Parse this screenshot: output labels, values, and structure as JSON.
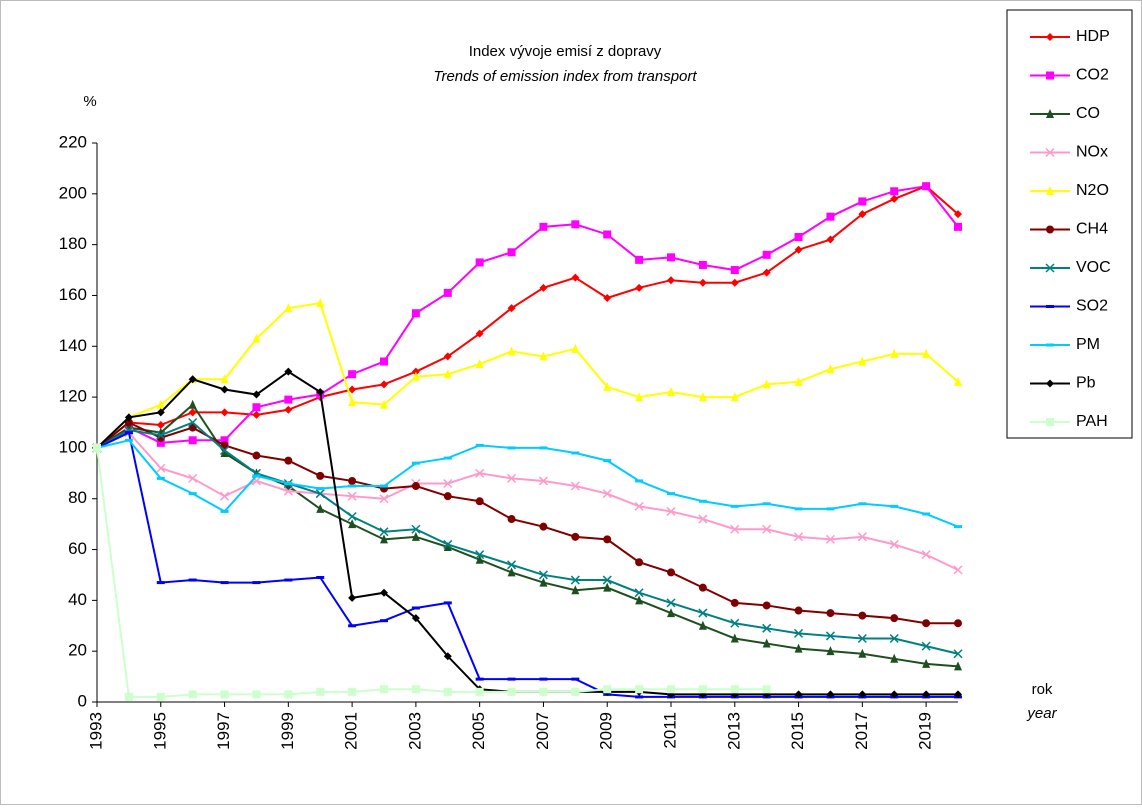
{
  "chart_data": {
    "type": "line",
    "title": "Index vývoje emisí z dopravy",
    "subtitle": "Trends of emission index from transport",
    "y_label": "%",
    "x_label": "rok",
    "x_label_en": "year",
    "x": [
      1993,
      1994,
      1995,
      1996,
      1997,
      1998,
      1999,
      2000,
      2001,
      2002,
      2003,
      2004,
      2005,
      2006,
      2007,
      2008,
      2009,
      2010,
      2011,
      2012,
      2013,
      2014,
      2015,
      2016,
      2017,
      2018,
      2019,
      2020
    ],
    "xlim": [
      1993,
      2020
    ],
    "xticks": [
      1993,
      1995,
      1997,
      1999,
      2001,
      2003,
      2005,
      2007,
      2009,
      2011,
      2013,
      2015,
      2017,
      2019
    ],
    "ylim": [
      0,
      220
    ],
    "yticks": [
      0,
      20,
      40,
      60,
      80,
      100,
      120,
      140,
      160,
      180,
      200,
      220
    ],
    "legend": "right",
    "series": [
      {
        "name": "HDP",
        "color": "#ff0000",
        "marker": "diamond",
        "values": [
          100,
          110,
          109,
          114,
          114,
          113,
          115,
          120,
          123,
          125,
          130,
          136,
          145,
          155,
          163,
          167,
          159,
          163,
          166,
          165,
          165,
          169,
          178,
          182,
          192,
          198,
          203,
          192
        ]
      },
      {
        "name": "CO2",
        "color": "#ff00ff",
        "marker": "square",
        "values": [
          100,
          108,
          102,
          103,
          103,
          116,
          119,
          121,
          129,
          134,
          153,
          161,
          173,
          177,
          187,
          188,
          184,
          174,
          175,
          172,
          170,
          176,
          183,
          191,
          197,
          201,
          203,
          187
        ]
      },
      {
        "name": "CO",
        "color": "#1f4f1f",
        "marker": "triangle",
        "values": [
          100,
          108,
          106,
          117,
          98,
          90,
          85,
          76,
          70,
          64,
          65,
          61,
          56,
          51,
          47,
          44,
          45,
          40,
          35,
          30,
          25,
          23,
          21,
          20,
          19,
          17,
          15,
          14
        ]
      },
      {
        "name": "NOx",
        "color": "#ff99cc",
        "marker": "cross",
        "values": [
          100,
          106,
          92,
          88,
          81,
          87,
          83,
          82,
          81,
          80,
          86,
          86,
          90,
          88,
          87,
          85,
          82,
          77,
          75,
          72,
          68,
          68,
          65,
          64,
          65,
          62,
          58,
          52
        ]
      },
      {
        "name": "N2O",
        "color": "#ffff00",
        "marker": "triangle",
        "values": [
          100,
          112,
          117,
          127,
          127,
          143,
          155,
          157,
          118,
          117,
          128,
          129,
          133,
          138,
          136,
          139,
          124,
          120,
          122,
          120,
          120,
          125,
          126,
          131,
          134,
          137,
          137,
          126
        ]
      },
      {
        "name": "CH4",
        "color": "#800000",
        "marker": "circle",
        "values": [
          100,
          110,
          104,
          108,
          101,
          97,
          95,
          89,
          87,
          84,
          85,
          81,
          79,
          72,
          69,
          65,
          64,
          55,
          51,
          45,
          39,
          38,
          36,
          35,
          34,
          33,
          31,
          31
        ]
      },
      {
        "name": "VOC",
        "color": "#008080",
        "marker": "cross",
        "values": [
          100,
          107,
          105,
          110,
          99,
          90,
          86,
          82,
          73,
          67,
          68,
          62,
          58,
          54,
          50,
          48,
          48,
          43,
          39,
          35,
          31,
          29,
          27,
          26,
          25,
          25,
          22,
          19
        ]
      },
      {
        "name": "SO2",
        "color": "#0000ff",
        "marker": "bar",
        "values": [
          100,
          106,
          47,
          48,
          47,
          47,
          48,
          49,
          30,
          32,
          37,
          39,
          9,
          9,
          9,
          9,
          3,
          2,
          2,
          2,
          2,
          2,
          2,
          2,
          2,
          2,
          2,
          2
        ]
      },
      {
        "name": "PM",
        "color": "#00ccff",
        "marker": "bar",
        "values": [
          100,
          103,
          88,
          82,
          75,
          89,
          86,
          84,
          85,
          85,
          94,
          96,
          101,
          100,
          100,
          98,
          95,
          87,
          82,
          79,
          77,
          78,
          76,
          76,
          78,
          77,
          74,
          69
        ]
      },
      {
        "name": "Pb",
        "color": "#000000",
        "marker": "diamond",
        "values": [
          100,
          112,
          114,
          127,
          123,
          121,
          130,
          122,
          41,
          43,
          33,
          18,
          5,
          4,
          4,
          4,
          4,
          4,
          3,
          3,
          3,
          3,
          3,
          3,
          3,
          3,
          3,
          3
        ]
      },
      {
        "name": "PAH",
        "color": "#ccffcc",
        "marker": "square",
        "values": [
          100,
          2,
          2,
          3,
          3,
          3,
          3,
          4,
          4,
          5,
          5,
          4,
          4,
          4,
          4,
          4,
          5,
          5,
          5,
          5,
          5,
          5,
          null,
          null,
          null,
          null,
          null,
          null
        ]
      }
    ]
  }
}
